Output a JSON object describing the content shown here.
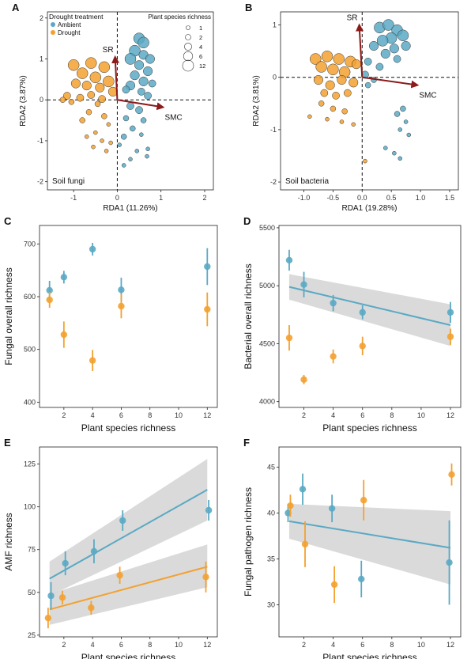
{
  "colors": {
    "ambient": "#5aa9c4",
    "drought": "#f3a130",
    "arrow": "#8b1a1a",
    "band": "#d3d3d3"
  },
  "chart_data": [
    {
      "id": "A",
      "panel_letter": "A",
      "type": "scatter",
      "xlabel": "RDA1 (11.26%)",
      "ylabel": "RDA2 (3.87%)",
      "xlim": [
        -1.6,
        2.2
      ],
      "ylim": [
        -2.2,
        2.15
      ],
      "xticks": [
        -1,
        0,
        1,
        2
      ],
      "yticks": [
        -2,
        -1,
        0,
        1,
        2
      ],
      "zero_lines": true,
      "annotation": "Soil fungi",
      "legend": {
        "title": "Drought treatment",
        "entries": [
          "Ambient",
          "Drought"
        ],
        "size_title": "Plant species richness",
        "size_levels": [
          "1",
          "2",
          "4",
          "6",
          "12"
        ]
      },
      "arrows": [
        {
          "label": "SR",
          "x": -0.05,
          "y": 1.05
        },
        {
          "label": "SMC",
          "x": 1.05,
          "y": -0.18
        }
      ],
      "series": [
        {
          "name": "Ambient",
          "points": [
            [
              0.5,
              1.5,
              12
            ],
            [
              0.6,
              1.4,
              12
            ],
            [
              0.4,
              1.2,
              12
            ],
            [
              0.3,
              1.0,
              12
            ],
            [
              0.6,
              1.1,
              6
            ],
            [
              0.75,
              1.0,
              6
            ],
            [
              0.5,
              0.85,
              6
            ],
            [
              0.4,
              0.6,
              6
            ],
            [
              0.7,
              0.7,
              6
            ],
            [
              0.3,
              0.35,
              6
            ],
            [
              0.6,
              0.45,
              6
            ],
            [
              0.8,
              0.4,
              4
            ],
            [
              0.2,
              0.25,
              4
            ],
            [
              0.55,
              0.2,
              4
            ],
            [
              0.7,
              0.1,
              4
            ],
            [
              0.3,
              -0.15,
              4
            ],
            [
              0.5,
              -0.25,
              4
            ],
            [
              0.2,
              -0.45,
              2
            ],
            [
              0.6,
              -0.5,
              2
            ],
            [
              0.35,
              -0.7,
              2
            ],
            [
              0.15,
              -0.9,
              2
            ],
            [
              0.55,
              -0.85,
              1
            ],
            [
              0.05,
              -1.1,
              1
            ],
            [
              0.45,
              -1.25,
              1
            ],
            [
              0.7,
              -1.2,
              1
            ],
            [
              0.3,
              -1.45,
              1
            ],
            [
              0.15,
              -1.6,
              1
            ],
            [
              0.68,
              -1.38,
              1
            ]
          ]
        },
        {
          "name": "Drought",
          "points": [
            [
              -1.0,
              0.85,
              12
            ],
            [
              -0.6,
              0.9,
              12
            ],
            [
              -0.3,
              0.8,
              12
            ],
            [
              -0.8,
              0.65,
              12
            ],
            [
              -0.5,
              0.55,
              12
            ],
            [
              -0.2,
              0.45,
              12
            ],
            [
              -0.95,
              0.4,
              6
            ],
            [
              -0.7,
              0.35,
              6
            ],
            [
              -0.4,
              0.3,
              6
            ],
            [
              -0.1,
              0.2,
              6
            ],
            [
              -1.15,
              0.1,
              4
            ],
            [
              -0.85,
              0.05,
              4
            ],
            [
              -0.6,
              0.12,
              4
            ],
            [
              -0.35,
              0.02,
              4
            ],
            [
              -1.25,
              0.0,
              2
            ],
            [
              -1.05,
              -0.05,
              2
            ],
            [
              -0.45,
              -0.1,
              2
            ],
            [
              -0.65,
              -0.3,
              2
            ],
            [
              -0.3,
              -0.4,
              2
            ],
            [
              -0.8,
              -0.5,
              2
            ],
            [
              -0.2,
              -0.6,
              1
            ],
            [
              -0.5,
              -0.8,
              1
            ],
            [
              -0.7,
              -0.9,
              1
            ],
            [
              -0.35,
              -1.0,
              1
            ],
            [
              -0.15,
              -1.05,
              1
            ],
            [
              -0.55,
              -1.15,
              1
            ],
            [
              -0.25,
              -1.25,
              1
            ]
          ]
        }
      ]
    },
    {
      "id": "B",
      "panel_letter": "B",
      "type": "scatter",
      "xlabel": "RDA1 (19.28%)",
      "ylabel": "RDA2 (3.81%)",
      "xlim": [
        -1.4,
        1.65
      ],
      "ylim": [
        -2.15,
        1.25
      ],
      "xticks": [
        -1.0,
        -0.5,
        0.0,
        0.5,
        1.0,
        1.5
      ],
      "xtick_labels": [
        "-1.0",
        "-0.5",
        "0.0",
        "0.5",
        "1.0",
        "1.5"
      ],
      "yticks": [
        -2,
        -1,
        0,
        1
      ],
      "zero_lines": true,
      "annotation": "Soil bacteria",
      "arrows": [
        {
          "label": "SR",
          "x": -0.05,
          "y": 1.0
        },
        {
          "label": "SMC",
          "x": 0.95,
          "y": -0.15
        }
      ],
      "series": [
        {
          "name": "Ambient",
          "points": [
            [
              0.3,
              0.95,
              12
            ],
            [
              0.45,
              1.0,
              12
            ],
            [
              0.6,
              0.9,
              12
            ],
            [
              0.7,
              0.8,
              12
            ],
            [
              0.5,
              0.75,
              12
            ],
            [
              0.35,
              0.7,
              12
            ],
            [
              0.2,
              0.6,
              6
            ],
            [
              0.55,
              0.55,
              6
            ],
            [
              0.75,
              0.6,
              6
            ],
            [
              0.4,
              0.45,
              6
            ],
            [
              0.1,
              0.3,
              4
            ],
            [
              0.6,
              0.35,
              4
            ],
            [
              0.3,
              0.2,
              4
            ],
            [
              0.05,
              0.05,
              4
            ],
            [
              0.2,
              -0.05,
              2
            ],
            [
              0.1,
              -0.15,
              2
            ],
            [
              0.7,
              -0.6,
              2
            ],
            [
              0.6,
              -0.7,
              2
            ],
            [
              0.75,
              -0.85,
              1
            ],
            [
              0.65,
              -1.0,
              1
            ],
            [
              0.8,
              -1.1,
              1
            ],
            [
              0.4,
              -1.35,
              1
            ],
            [
              0.55,
              -1.45,
              1
            ],
            [
              0.65,
              -1.55,
              1
            ]
          ]
        },
        {
          "name": "Drought",
          "points": [
            [
              -0.8,
              0.35,
              12
            ],
            [
              -0.6,
              0.4,
              12
            ],
            [
              -0.4,
              0.35,
              12
            ],
            [
              -0.2,
              0.3,
              12
            ],
            [
              -0.7,
              0.2,
              12
            ],
            [
              -0.5,
              0.15,
              12
            ],
            [
              -0.3,
              0.1,
              12
            ],
            [
              -0.1,
              0.25,
              6
            ],
            [
              -0.75,
              -0.05,
              6
            ],
            [
              -0.55,
              -0.15,
              6
            ],
            [
              -0.35,
              -0.05,
              6
            ],
            [
              -0.15,
              -0.1,
              6
            ],
            [
              -0.65,
              -0.3,
              4
            ],
            [
              -0.45,
              -0.35,
              4
            ],
            [
              -0.25,
              -0.3,
              4
            ],
            [
              -0.7,
              -0.5,
              2
            ],
            [
              -0.5,
              -0.6,
              2
            ],
            [
              -0.3,
              -0.65,
              2
            ],
            [
              -0.9,
              -0.75,
              1
            ],
            [
              -0.6,
              -0.8,
              1
            ],
            [
              -0.35,
              -0.85,
              1
            ],
            [
              -0.15,
              -0.9,
              1
            ],
            [
              0.05,
              -1.6,
              1
            ]
          ]
        }
      ]
    },
    {
      "id": "C",
      "panel_letter": "C",
      "type": "errorbar",
      "xlabel": "Plant species richness",
      "ylabel": "Fungal overall richness",
      "xlim": [
        0.3,
        12.7
      ],
      "ylim": [
        390,
        735
      ],
      "xticks": [
        2,
        4,
        6,
        8,
        10,
        12
      ],
      "yticks": [
        400,
        500,
        600,
        700
      ],
      "x": [
        1,
        2,
        4,
        6,
        12
      ],
      "series": [
        {
          "name": "Ambient",
          "values": [
            612,
            637,
            690,
            613,
            657
          ],
          "err": [
            18,
            12,
            12,
            23,
            35
          ],
          "offset": 0
        },
        {
          "name": "Drought",
          "values": [
            594,
            528,
            479,
            582,
            576
          ],
          "err": [
            15,
            25,
            20,
            23,
            32
          ],
          "offset": 0
        }
      ]
    },
    {
      "id": "D",
      "panel_letter": "D",
      "type": "errorbar",
      "xlabel": "Plant species richness",
      "ylabel": "Bacterial overall richness",
      "xlim": [
        0.3,
        12.7
      ],
      "ylim": [
        3950,
        5520
      ],
      "xticks": [
        2,
        4,
        6,
        8,
        10,
        12
      ],
      "yticks": [
        4000,
        4500,
        5000,
        5500
      ],
      "x": [
        1,
        2,
        4,
        6,
        12
      ],
      "series": [
        {
          "name": "Ambient",
          "values": [
            5220,
            5010,
            4850,
            4770,
            4770
          ],
          "err": [
            90,
            110,
            70,
            60,
            90
          ],
          "offset": 0,
          "fit": [
            4990,
            4660
          ],
          "band": [
            [
              4880,
              5100
            ],
            [
              4480,
              4840
            ]
          ]
        },
        {
          "name": "Drought",
          "values": [
            4550,
            4190,
            4390,
            4480,
            4560
          ],
          "err": [
            110,
            40,
            60,
            80,
            70
          ],
          "offset": 0
        }
      ]
    },
    {
      "id": "E",
      "panel_letter": "E",
      "type": "errorbar",
      "xlabel": "Plant species richness",
      "ylabel": "AMF richness",
      "xlim": [
        0.3,
        12.7
      ],
      "ylim": [
        24,
        135
      ],
      "xticks": [
        2,
        4,
        6,
        8,
        10,
        12
      ],
      "yticks": [
        25,
        50,
        75,
        100,
        125
      ],
      "x": [
        1,
        2,
        4,
        6,
        12
      ],
      "series": [
        {
          "name": "Ambient",
          "values": [
            48,
            67,
            74,
            92,
            98
          ],
          "err": [
            8,
            7,
            7,
            6,
            6
          ],
          "offset": 0.1,
          "fit": [
            58,
            110
          ],
          "band": [
            [
              48,
              68
            ],
            [
              92,
              128
            ]
          ]
        },
        {
          "name": "Drought",
          "values": [
            35,
            47,
            41,
            60,
            59
          ],
          "err": [
            6,
            4,
            4,
            5,
            9
          ],
          "offset": -0.1,
          "fit": [
            40,
            65
          ],
          "band": [
            [
              31,
              49
            ],
            [
              53,
              78
            ]
          ]
        }
      ]
    },
    {
      "id": "F",
      "panel_letter": "F",
      "type": "errorbar",
      "xlabel": "Plant species richness",
      "ylabel": "Fungal pathogen richness",
      "xlim": [
        0.3,
        12.7
      ],
      "ylim": [
        26.5,
        47.2
      ],
      "xticks": [
        2,
        4,
        6,
        8,
        10,
        12
      ],
      "yticks": [
        30,
        35,
        40,
        45
      ],
      "x": [
        1,
        2,
        4,
        6,
        12
      ],
      "series": [
        {
          "name": "Ambient",
          "values": [
            40.0,
            42.6,
            40.5,
            32.8,
            34.6
          ],
          "err": [
            1.0,
            1.7,
            1.5,
            2.0,
            4.6
          ],
          "offset": -0.08,
          "fit": [
            39.1,
            36.2
          ],
          "band": [
            [
              37.2,
              41.0
            ],
            [
              32.2,
              40.2
            ]
          ]
        },
        {
          "name": "Drought",
          "values": [
            40.8,
            36.6,
            32.2,
            41.4,
            44.2
          ],
          "err": [
            1.2,
            2.5,
            2.0,
            2.2,
            1.2
          ],
          "offset": 0.08
        }
      ]
    }
  ]
}
